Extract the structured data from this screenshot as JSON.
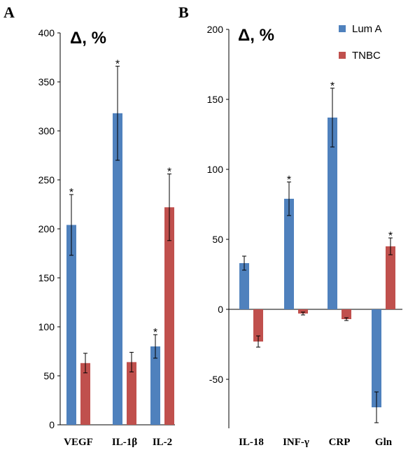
{
  "legend": [
    {
      "name": "Lum A",
      "color": "#4f81bd"
    },
    {
      "name": "TNBC",
      "color": "#c0504d"
    }
  ],
  "chart_data": [
    {
      "type": "bar",
      "panel_label": "A",
      "ylabel": "Δ, %",
      "ylim": [
        0,
        400
      ],
      "yticks": [
        0,
        50,
        100,
        150,
        200,
        250,
        300,
        350,
        400
      ],
      "categories": [
        "VEGF",
        "IL-1β",
        "IL-2"
      ],
      "series": [
        {
          "name": "Lum A",
          "values": [
            204,
            318,
            80
          ],
          "errors": [
            31,
            48,
            12
          ],
          "significant": [
            true,
            true,
            true
          ]
        },
        {
          "name": "TNBC",
          "values": [
            63,
            64,
            222
          ],
          "errors": [
            10,
            10,
            34
          ],
          "significant": [
            false,
            false,
            true
          ]
        }
      ],
      "annotation": "*"
    },
    {
      "type": "bar",
      "panel_label": "B",
      "ylabel": "Δ, %",
      "ylim": [
        -85,
        200
      ],
      "yticks": [
        -50,
        0,
        50,
        100,
        150,
        200
      ],
      "categories": [
        "IL-18",
        "INF-γ",
        "CRP",
        "Gln"
      ],
      "series": [
        {
          "name": "Lum A",
          "values": [
            33,
            79,
            137,
            -70
          ],
          "errors": [
            5,
            12,
            21,
            11
          ],
          "significant": [
            false,
            true,
            true,
            false
          ]
        },
        {
          "name": "TNBC",
          "values": [
            -23,
            -3,
            -7,
            45
          ],
          "errors": [
            4,
            1,
            1,
            6
          ],
          "significant": [
            false,
            false,
            false,
            true
          ]
        }
      ],
      "annotation": "*"
    }
  ]
}
